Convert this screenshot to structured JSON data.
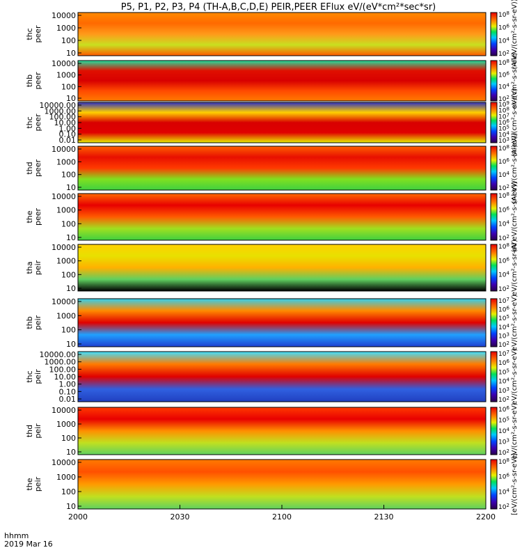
{
  "chart_data": {
    "type": "heatmap",
    "title": "P5, P1, P2, P3, P4 (TH-A,B,C,D,E) PEIR,PEER EFlux eV/(eV*cm²*sec*sr)",
    "x_axis": {
      "tick_labels": [
        "2000",
        "2030",
        "2100",
        "2130",
        "2200"
      ],
      "label_line1": "hhmm",
      "label_line2": "2019 Mar 16"
    },
    "colormap": "rainbow (purple-blue-cyan-green-yellow-orange-red), log scale",
    "panels": [
      {
        "probe": "thc",
        "species": "peer",
        "ylabel": "thc\npeer",
        "yticks": [
          "10000",
          "1000",
          "100",
          "10"
        ],
        "cb_ticks": [
          "10^8",
          "10^6",
          "10^4",
          "10^2"
        ],
        "cb_label": "(AlleV/(cm²-s-sr-eV))"
      },
      {
        "probe": "thb",
        "species": "peer",
        "ylabel": "thb\npeer",
        "yticks": [
          "10000",
          "1000",
          "100",
          "10"
        ],
        "cb_ticks": [
          "10^8",
          "10^6",
          "10^4",
          "10^2"
        ],
        "cb_label": "eV/(cm²-s-sr-eV)"
      },
      {
        "probe": "thc",
        "species": "peer",
        "ylabel": "thc\npeer",
        "yticks": [
          "10000.00",
          "1000.00",
          "100.00",
          "10.00",
          "1.00",
          "0.10",
          "0.01"
        ],
        "cb_ticks": [
          "10^9",
          "10^8",
          "10^7",
          "10^6",
          "10^5",
          "10^4",
          "10^3"
        ],
        "cb_label": "(Al)eV/(cm²-s-sr-eV)"
      },
      {
        "probe": "thd",
        "species": "peer",
        "ylabel": "thd\npeer",
        "yticks": [
          "10000",
          "1000",
          "100",
          "10"
        ],
        "cb_ticks": [
          "10^8",
          "10^6",
          "10^4",
          "10^2"
        ],
        "cb_label": "(Al eV/(cm²-s-sr-eV))"
      },
      {
        "probe": "the",
        "species": "peer",
        "ylabel": "the\npeer",
        "yticks": [
          "10000",
          "1000",
          "100",
          "10"
        ],
        "cb_ticks": [
          "10^8",
          "10^6",
          "10^4",
          "10^2"
        ],
        "cb_label": "(Al eV/(cm²-s-sr-eV))"
      },
      {
        "probe": "tha",
        "species": "peir",
        "ylabel": "tha\npeir",
        "yticks": [
          "10000",
          "1000",
          "100",
          "10"
        ],
        "cb_ticks": [
          "10^8",
          "10^6",
          "10^4",
          "10^2"
        ],
        "cb_label": "eV/(cm²-s-sr-eV)"
      },
      {
        "probe": "thb",
        "species": "peir",
        "ylabel": "thb\npeir",
        "yticks": [
          "10000",
          "1000",
          "100",
          "10"
        ],
        "cb_ticks": [
          "10^7",
          "10^6",
          "10^5",
          "10^4",
          "10^3",
          "10^2"
        ],
        "cb_label": "eV/(cm²-s-sr-eV)"
      },
      {
        "probe": "thc",
        "species": "peir",
        "ylabel": "thc\npeir",
        "yticks": [
          "10000.00",
          "1000.00",
          "100.00",
          "10.00",
          "1.00",
          "0.10",
          "0.01"
        ],
        "cb_ticks": [
          "10^7",
          "10^6",
          "10^5",
          "10^4",
          "10^3",
          "10^2"
        ],
        "cb_label": "eV/(cm²-s-sr-eV)"
      },
      {
        "probe": "thd",
        "species": "peir",
        "ylabel": "thd\npeir",
        "yticks": [
          "10000",
          "1000",
          "100",
          "10"
        ],
        "cb_ticks": [
          "10^6",
          "10^5",
          "10^4",
          "10^3",
          "10^2"
        ],
        "cb_label": "eV/(cm²-s-sr-eV)"
      },
      {
        "probe": "the",
        "species": "peir",
        "ylabel": "the\npeir",
        "yticks": [
          "10000",
          "1000",
          "100",
          "10"
        ],
        "cb_ticks": [
          "10^8",
          "10^6",
          "10^4",
          "10^2"
        ],
        "cb_label": "[eV/(cm²-s-sr-eV)]"
      }
    ]
  }
}
